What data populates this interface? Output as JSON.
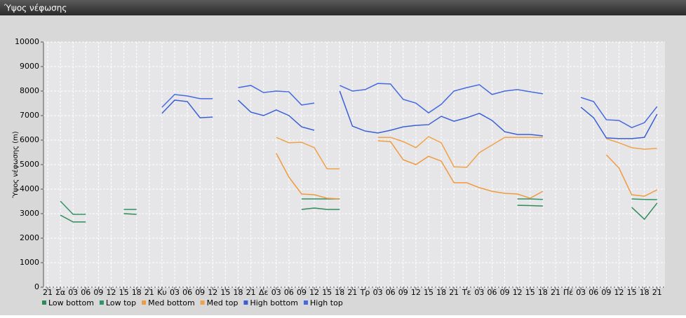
{
  "chart_data": {
    "type": "line",
    "title": "Ύψος νέφωσης",
    "ylabel": "Ύψος νέφωσης (m)",
    "categories": [
      "21",
      "Σα",
      "03",
      "06",
      "09",
      "12",
      "15",
      "18",
      "21",
      "Κυ",
      "03",
      "06",
      "09",
      "12",
      "15",
      "18",
      "21",
      "Δε",
      "03",
      "06",
      "09",
      "12",
      "15",
      "18",
      "21",
      "Τρ",
      "03",
      "06",
      "09",
      "12",
      "15",
      "18",
      "21",
      "Τε",
      "03",
      "06",
      "09",
      "12",
      "15",
      "18",
      "21",
      "Πέ",
      "03",
      "06",
      "09",
      "12",
      "15",
      "18",
      "21"
    ],
    "ylim": [
      0,
      10000
    ],
    "yticks": [
      0,
      1000,
      2000,
      3000,
      4000,
      5000,
      6000,
      7000,
      8000,
      9000,
      10000
    ],
    "grid": true,
    "legend": "bottom-left",
    "series": [
      {
        "name": "Low bottom",
        "color": "#2e8b57",
        "values": [
          null,
          2940,
          2660,
          2660,
          null,
          null,
          3000,
          2970,
          null,
          null,
          null,
          null,
          null,
          null,
          null,
          null,
          null,
          null,
          null,
          null,
          3170,
          3230,
          3170,
          3170,
          null,
          null,
          null,
          null,
          null,
          null,
          null,
          null,
          null,
          null,
          null,
          null,
          null,
          3340,
          3330,
          3310,
          null,
          null,
          null,
          null,
          null,
          null,
          3260,
          2770,
          3430
        ]
      },
      {
        "name": "Low top",
        "color": "#2f9464",
        "values": [
          null,
          3510,
          2970,
          2970,
          null,
          null,
          3170,
          3170,
          null,
          null,
          null,
          null,
          null,
          null,
          null,
          null,
          null,
          null,
          null,
          null,
          3600,
          3600,
          3600,
          3600,
          null,
          null,
          null,
          null,
          null,
          null,
          null,
          null,
          null,
          null,
          null,
          null,
          null,
          3600,
          3600,
          3580,
          null,
          null,
          null,
          null,
          null,
          null,
          3600,
          3580,
          3570
        ]
      },
      {
        "name": "Med bottom",
        "color": "#f09a3e",
        "values": [
          null,
          null,
          null,
          null,
          null,
          null,
          null,
          null,
          null,
          null,
          null,
          null,
          null,
          null,
          null,
          null,
          null,
          null,
          5460,
          4490,
          3800,
          3770,
          3630,
          3600,
          null,
          null,
          5970,
          5940,
          5200,
          5000,
          5340,
          5140,
          4260,
          4260,
          4060,
          3910,
          3830,
          3800,
          3630,
          3910,
          null,
          null,
          null,
          null,
          5400,
          4860,
          3770,
          3710,
          3970
        ]
      },
      {
        "name": "Med top",
        "color": "#f0a24a",
        "values": [
          null,
          null,
          null,
          null,
          null,
          null,
          null,
          null,
          null,
          null,
          null,
          null,
          null,
          null,
          null,
          null,
          null,
          null,
          6110,
          5890,
          5910,
          5690,
          4830,
          4830,
          null,
          null,
          6110,
          6110,
          5940,
          5690,
          6140,
          5890,
          4910,
          4890,
          5490,
          5800,
          6110,
          6110,
          6110,
          6110,
          null,
          null,
          null,
          null,
          6060,
          5890,
          5690,
          5630,
          5660
        ]
      },
      {
        "name": "High bottom",
        "color": "#3a5fd4",
        "values": [
          null,
          null,
          null,
          null,
          null,
          null,
          null,
          null,
          null,
          7090,
          7630,
          7570,
          6910,
          6940,
          null,
          7630,
          7140,
          7000,
          7230,
          7000,
          6540,
          6400,
          null,
          8000,
          6570,
          6370,
          6290,
          6400,
          6540,
          6600,
          6630,
          6970,
          6770,
          6910,
          7090,
          6800,
          6340,
          6230,
          6230,
          6170,
          null,
          null,
          7340,
          6910,
          6090,
          6060,
          6060,
          6110,
          7060
        ]
      },
      {
        "name": "High top",
        "color": "#4469e0",
        "values": [
          null,
          null,
          null,
          null,
          null,
          null,
          null,
          null,
          null,
          7340,
          7860,
          7800,
          7690,
          7690,
          null,
          8140,
          8230,
          7940,
          8000,
          7970,
          7430,
          7510,
          null,
          8230,
          8000,
          8060,
          8310,
          8290,
          7660,
          7510,
          7110,
          7460,
          8000,
          8140,
          8260,
          7860,
          8000,
          8060,
          7970,
          7890,
          null,
          null,
          7740,
          7570,
          6830,
          6800,
          6510,
          6710,
          7370
        ]
      }
    ]
  }
}
